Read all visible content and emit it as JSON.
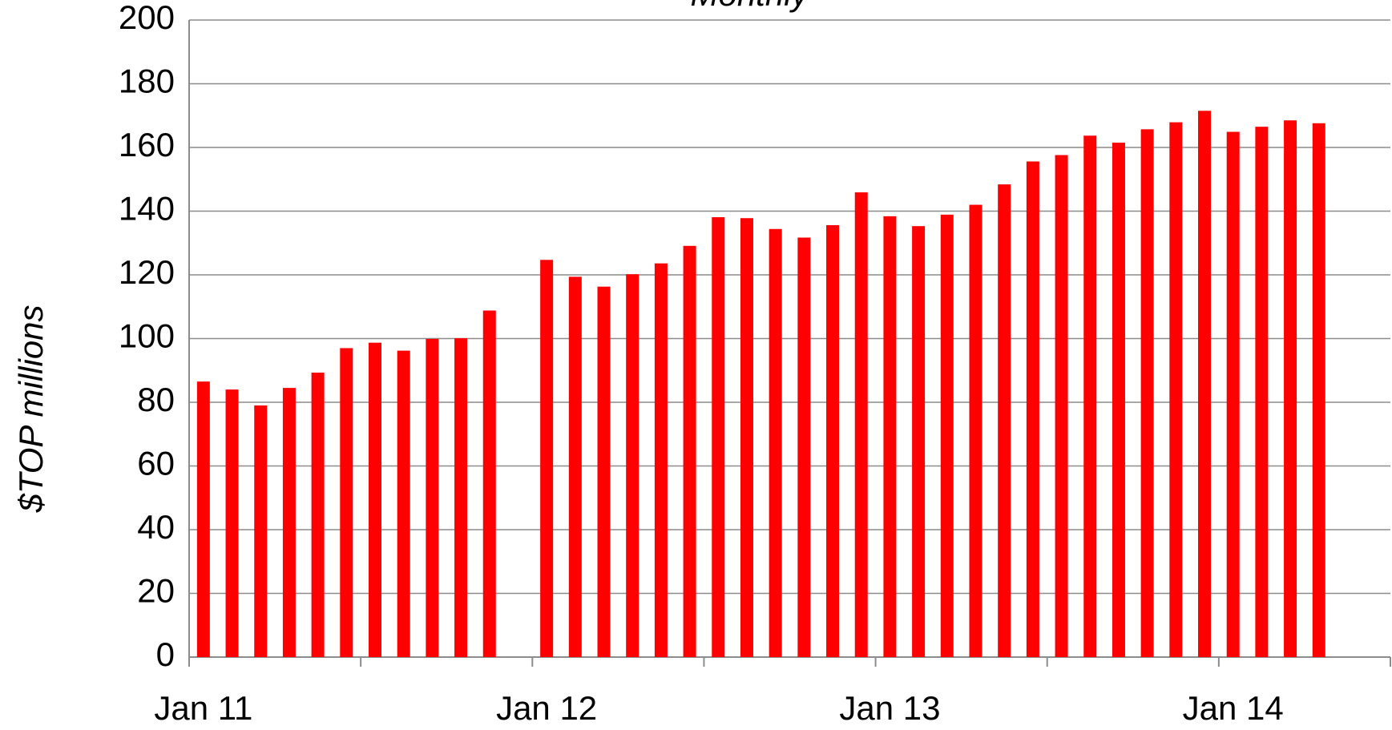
{
  "chart_data": {
    "type": "bar",
    "title": "Monthly",
    "y_label": "$TOP millions",
    "categories": [
      "Jan 11",
      null,
      null,
      null,
      null,
      null,
      null,
      null,
      null,
      null,
      null,
      null,
      "Jan 12",
      null,
      null,
      null,
      null,
      null,
      null,
      null,
      null,
      null,
      null,
      null,
      "Jan 13",
      null,
      null,
      null,
      null,
      null,
      null,
      null,
      null,
      null,
      null,
      null,
      "Jan 14",
      null,
      null,
      null
    ],
    "values": [
      86.5,
      84,
      79,
      84.5,
      89.3,
      97,
      98.7,
      96.2,
      99.9,
      100.1,
      108.8,
      null,
      124.7,
      119.4,
      116.3,
      120.2,
      123.6,
      129.1,
      138.1,
      137.8,
      134.4,
      131.7,
      135.6,
      145.9,
      138.4,
      135.3,
      138.9,
      142,
      148.4,
      155.6,
      157.6,
      163.7,
      161.5,
      165.7,
      167.9,
      171.5,
      164.9,
      166.5,
      168.5,
      167.6
    ],
    "color": "#ff0000",
    "ylim": [
      0,
      200
    ],
    "yticks": [
      0,
      20,
      40,
      60,
      80,
      100,
      120,
      140,
      160,
      180,
      200
    ],
    "grid": true
  }
}
